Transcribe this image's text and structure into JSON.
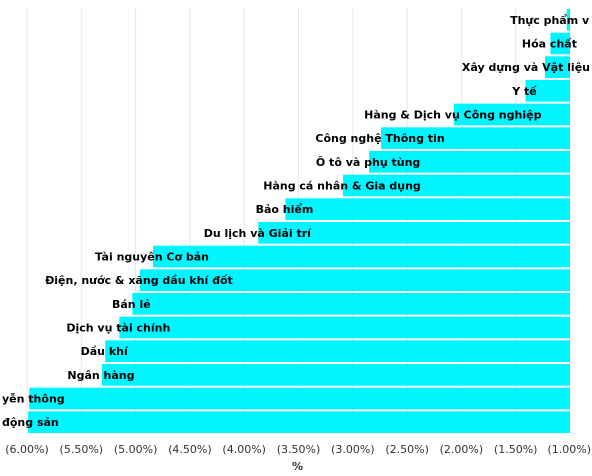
{
  "chart_data": {
    "type": "bar",
    "orientation": "horizontal",
    "xlabel": "%",
    "xlim": [
      -6.0,
      -1.0
    ],
    "x_ticks": [
      "(6.00%)",
      "(5.50%)",
      "(5.00%)",
      "(4.50%)",
      "(4.00%)",
      "(3.50%)",
      "(3.00%)",
      "(2.50%)",
      "(2.00%)",
      "(1.50%)",
      "(1.00%)"
    ],
    "grid": true,
    "bar_color": "#00F5FF",
    "categories": [
      "Thực phẩm v",
      "Hóa chất",
      "Xây dựng và Vật liệu",
      "Y tế",
      "Hàng & Dịch vụ Công nghiệp",
      "Công nghệ Thông tin",
      "Ô tô và phụ tùng",
      "Hàng cá nhân & Gia dụng",
      "Bảo hiểm",
      "Du lịch và Giải trí",
      "Tài nguyên Cơ bản",
      "Điện, nước & xăng dầu khí đốt",
      "Bán lẻ",
      "Dịch vụ tài chính",
      "Dầu khí",
      "Ngân hàng",
      "yễn thông",
      "động sản"
    ],
    "values": [
      -1.03,
      -1.18,
      -1.23,
      -1.41,
      -2.07,
      -2.74,
      -2.85,
      -3.09,
      -3.62,
      -3.87,
      -4.84,
      -4.96,
      -5.03,
      -5.15,
      -5.28,
      -5.31,
      -5.98,
      -5.99
    ]
  }
}
